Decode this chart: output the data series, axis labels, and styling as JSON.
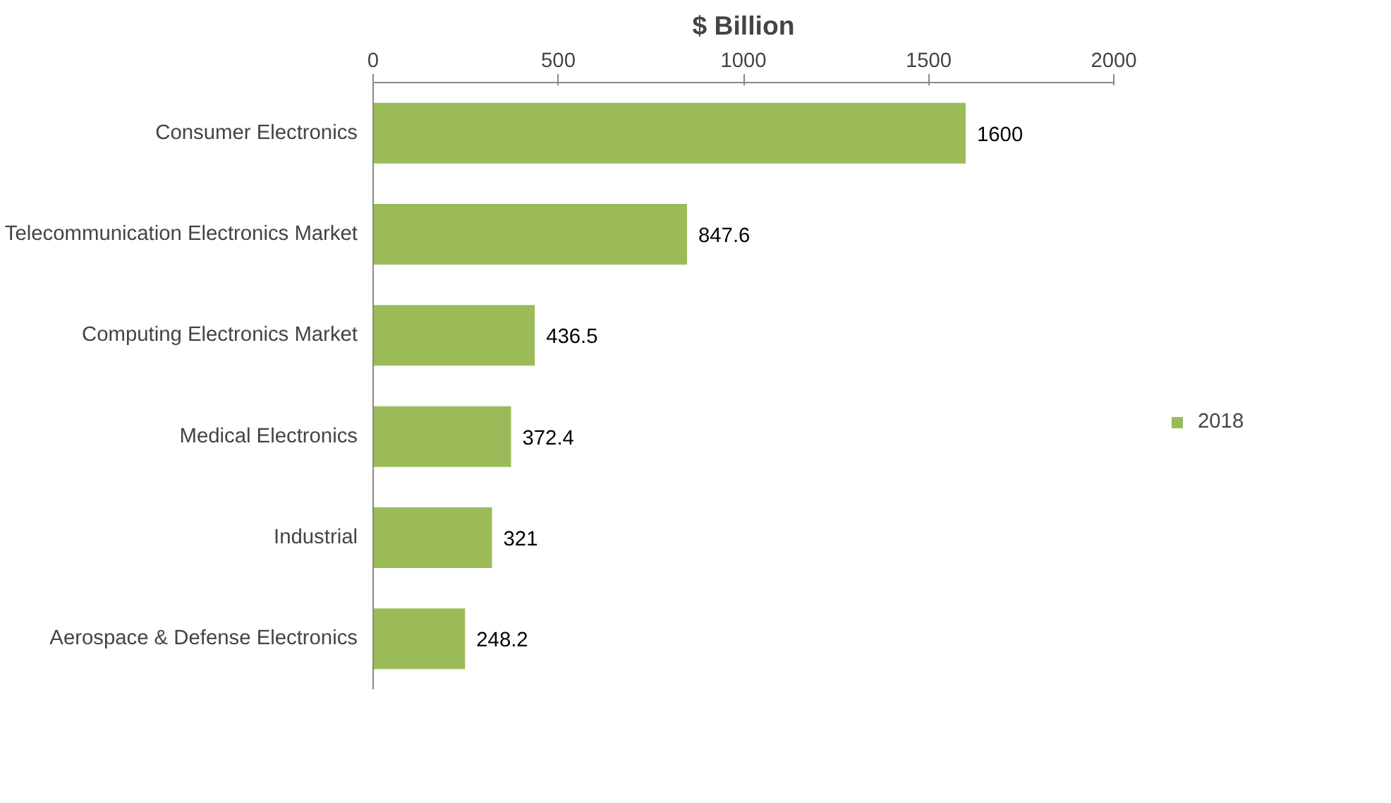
{
  "chart_data": {
    "type": "bar",
    "orientation": "horizontal",
    "title": "$ Billion",
    "categories": [
      "Consumer Electronics",
      "Telecommunication Electronics Market",
      "Computing Electronics Market",
      "Medical Electronics",
      "Industrial",
      "Aerospace & Defense Electronics"
    ],
    "series": [
      {
        "name": "2018",
        "color": "#9bbb59",
        "values": [
          1600,
          847.6,
          436.5,
          372.4,
          321,
          248.2
        ]
      }
    ],
    "xlim": [
      0,
      2000
    ],
    "xticks": [
      0,
      500,
      1000,
      1500,
      2000
    ],
    "data_labels": true,
    "grid": false,
    "legend": "right"
  }
}
